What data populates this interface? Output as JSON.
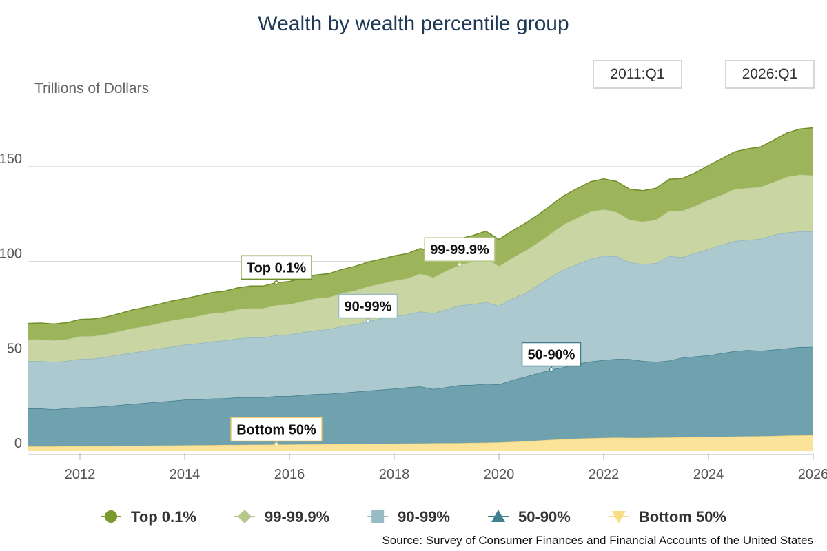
{
  "chart_data": {
    "type": "area",
    "stacked": true,
    "title": "Wealth by wealth percentile group",
    "ylabel": "Trillions of Dollars",
    "xlabel": "",
    "xlim": [
      2011.0,
      2026.0
    ],
    "ylim": [
      0,
      175
    ],
    "yticks": [
      "0",
      "50",
      "100",
      "150"
    ],
    "xticks": [
      "2012",
      "2014",
      "2016",
      "2018",
      "2020",
      "2022",
      "2024",
      "2026"
    ],
    "grid": true,
    "legend_position": "bottom",
    "date_range": {
      "start": "2011:Q1",
      "end": "2026:Q1"
    },
    "x": [
      2011.0,
      2011.25,
      2011.5,
      2011.75,
      2012.0,
      2012.25,
      2012.5,
      2012.75,
      2013.0,
      2013.25,
      2013.5,
      2013.75,
      2014.0,
      2014.25,
      2014.5,
      2014.75,
      2015.0,
      2015.25,
      2015.5,
      2015.75,
      2016.0,
      2016.25,
      2016.5,
      2016.75,
      2017.0,
      2017.25,
      2017.5,
      2017.75,
      2018.0,
      2018.25,
      2018.5,
      2018.75,
      2019.0,
      2019.25,
      2019.5,
      2019.75,
      2020.0,
      2020.25,
      2020.5,
      2020.75,
      2021.0,
      2021.25,
      2021.5,
      2021.75,
      2022.0,
      2022.25,
      2022.5,
      2022.75,
      2023.0,
      2023.25,
      2023.5,
      2023.75,
      2024.0,
      2024.25,
      2024.5,
      2024.75,
      2025.0,
      2025.25,
      2025.5,
      2025.75,
      2026.0
    ],
    "series": [
      {
        "name": "Bottom 50%",
        "color": "#fce39a",
        "values": [
          2.5,
          2.5,
          2.5,
          2.6,
          2.6,
          2.7,
          2.7,
          2.8,
          2.9,
          2.9,
          3.0,
          3.0,
          3.1,
          3.2,
          3.2,
          3.3,
          3.3,
          3.4,
          3.4,
          3.5,
          3.5,
          3.6,
          3.6,
          3.7,
          3.8,
          3.8,
          3.9,
          3.9,
          4.0,
          4.1,
          4.1,
          4.2,
          4.2,
          4.3,
          4.4,
          4.5,
          4.6,
          4.9,
          5.2,
          5.6,
          6.0,
          6.3,
          6.6,
          6.8,
          7.0,
          7.1,
          7.0,
          7.0,
          7.1,
          7.2,
          7.3,
          7.4,
          7.5,
          7.6,
          7.7,
          7.8,
          7.9,
          8.0,
          8.2,
          8.3,
          8.4
        ]
      },
      {
        "name": "50-90%",
        "color": "#6fa1ae",
        "values": [
          20,
          20,
          19.5,
          20,
          20.5,
          20.5,
          21,
          21.5,
          22,
          22.5,
          23,
          23.5,
          24,
          24,
          24.5,
          24.5,
          25,
          25,
          25,
          25.5,
          25.5,
          26,
          26.5,
          26.5,
          27,
          27.5,
          28,
          28.5,
          29,
          29.5,
          30,
          28.5,
          29.5,
          30.5,
          30.5,
          31,
          30.5,
          32.5,
          34,
          35.5,
          37,
          38,
          39.5,
          40.5,
          41,
          41.5,
          41.5,
          40.5,
          40,
          40.5,
          42,
          42.5,
          43,
          44,
          45,
          45.5,
          45,
          45.5,
          46,
          46.5,
          46.5
        ]
      },
      {
        "name": "90-99%",
        "color": "#adc9d0",
        "values": [
          25,
          25,
          25,
          25,
          25.5,
          25.5,
          26,
          26.5,
          27,
          27.5,
          28,
          28.5,
          29,
          29.5,
          30,
          30.5,
          31,
          31.5,
          31.5,
          32,
          32.5,
          33,
          33.5,
          34,
          35,
          35.5,
          36.5,
          37.5,
          38,
          38.5,
          39.5,
          40,
          41,
          42,
          42.5,
          43,
          41.5,
          43,
          44,
          46.5,
          49,
          51.5,
          52.5,
          54,
          55,
          54,
          51,
          51,
          52,
          55,
          53,
          54.5,
          56,
          57,
          58,
          58,
          59,
          60.5,
          61,
          61,
          61
        ]
      },
      {
        "name": "99-99.9%",
        "color": "#c9d6a4",
        "values": [
          11.5,
          11.5,
          11.5,
          11.5,
          12,
          12,
          12,
          12.5,
          13,
          13,
          13.5,
          14,
          14,
          14.5,
          15,
          15,
          15.5,
          15.5,
          15.5,
          16,
          16,
          16.5,
          17,
          17,
          17.5,
          18,
          18.5,
          18.5,
          19,
          19,
          20,
          19,
          20.5,
          21.5,
          22.5,
          23.5,
          21,
          21.5,
          22.5,
          22.5,
          23,
          24,
          24.5,
          25,
          24.5,
          23.5,
          22.5,
          22.5,
          23,
          24,
          24.5,
          25,
          26,
          26.5,
          27.5,
          27.5,
          27.5,
          28,
          29.5,
          30,
          29.5
        ]
      },
      {
        "name": "Top 0.1%",
        "color": "#9db55a",
        "values": [
          8.3,
          8.5,
          8.5,
          8.6,
          8.8,
          9,
          9,
          9.2,
          9.5,
          9.8,
          9.9,
          10.1,
          10.3,
          10.6,
          10.8,
          11,
          11.2,
          11.6,
          11.6,
          11.8,
          11.9,
          12.1,
          12.2,
          12.3,
          12.4,
          12.6,
          12.7,
          12.8,
          12.9,
          13,
          13.2,
          13.3,
          13.5,
          13.7,
          13.7,
          13.9,
          14,
          14.1,
          14.3,
          14.5,
          14.7,
          15,
          15.4,
          15.7,
          16,
          16,
          16,
          16.3,
          16.5,
          16.6,
          16.9,
          17.3,
          18,
          19,
          19.6,
          20.5,
          21,
          22,
          23,
          24,
          25
        ]
      }
    ],
    "callouts": [
      {
        "label": "Top 0.1%",
        "series": "Top 0.1%",
        "x": 2015.75
      },
      {
        "label": "99-99.9%",
        "series": "99-99.9%",
        "x": 2019.25
      },
      {
        "label": "90-99%",
        "series": "90-99%",
        "x": 2017.5
      },
      {
        "label": "50-90%",
        "series": "50-90%",
        "x": 2021.0
      },
      {
        "label": "Bottom 50%",
        "series": "Bottom 50%",
        "x": 2015.75
      }
    ],
    "legend": [
      {
        "label": "Top 0.1%",
        "marker": "circle",
        "color": "#7a9a2e"
      },
      {
        "label": "99-99.9%",
        "marker": "diamond",
        "color": "#b6c98a"
      },
      {
        "label": "90-99%",
        "marker": "square",
        "color": "#97bcc5"
      },
      {
        "label": "50-90%",
        "marker": "triangle-up",
        "color": "#3f8091"
      },
      {
        "label": "Bottom 50%",
        "marker": "triangle-down",
        "color": "#f9dd86"
      }
    ],
    "source": "Source: Survey of Consumer Finances and Financial Accounts of the United States"
  }
}
